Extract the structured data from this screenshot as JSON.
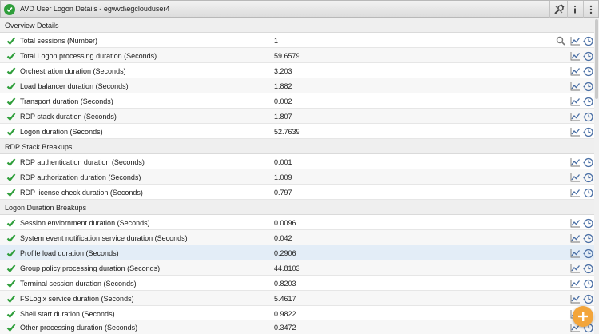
{
  "window": {
    "title": "AVD User Logon Details - egwvd\\egclouduser4",
    "status_icon": "check-circle-icon",
    "actions": [
      "settings-wrench-icon",
      "info-icon",
      "more-vertical-icon"
    ]
  },
  "colors": {
    "ok_green": "#2e9e3a",
    "section_bg": "#efefef",
    "highlight_row": "#e3edf7",
    "fab_orange": "#f3a53a",
    "icon_blue": "#4a6fa5"
  },
  "sections": [
    {
      "title": "Overview Details",
      "rows": [
        {
          "name": "Total sessions (Number)",
          "value": "1",
          "search": true
        },
        {
          "name": "Total Logon processing duration (Seconds)",
          "value": "59.6579"
        },
        {
          "name": "Orchestration duration (Seconds)",
          "value": "3.203"
        },
        {
          "name": "Load balancer duration (Seconds)",
          "value": "1.882"
        },
        {
          "name": "Transport duration (Seconds)",
          "value": "0.002"
        },
        {
          "name": "RDP stack duration (Seconds)",
          "value": "1.807"
        },
        {
          "name": "Logon duration (Seconds)",
          "value": "52.7639"
        }
      ]
    },
    {
      "title": "RDP Stack Breakups",
      "rows": [
        {
          "name": "RDP authentication duration (Seconds)",
          "value": "0.001"
        },
        {
          "name": "RDP authorization duration (Seconds)",
          "value": "1.009"
        },
        {
          "name": "RDP license check duration (Seconds)",
          "value": "0.797"
        }
      ]
    },
    {
      "title": "Logon Duration Breakups",
      "rows": [
        {
          "name": "Session enviornment duration (Seconds)",
          "value": "0.0096"
        },
        {
          "name": "System event notification service duration (Seconds)",
          "value": "0.042"
        },
        {
          "name": "Profile load duration (Seconds)",
          "value": "0.2906",
          "selected": true
        },
        {
          "name": "Group policy processing duration (Seconds)",
          "value": "44.8103"
        },
        {
          "name": "Terminal session duration (Seconds)",
          "value": "0.8203"
        },
        {
          "name": "FSLogix service duration (Seconds)",
          "value": "5.4617"
        },
        {
          "name": "Shell start duration (Seconds)",
          "value": "0.9822"
        },
        {
          "name": "Other processing duration (Seconds)",
          "value": "0.3472"
        }
      ]
    }
  ],
  "fab": {
    "icon": "plus-icon"
  }
}
